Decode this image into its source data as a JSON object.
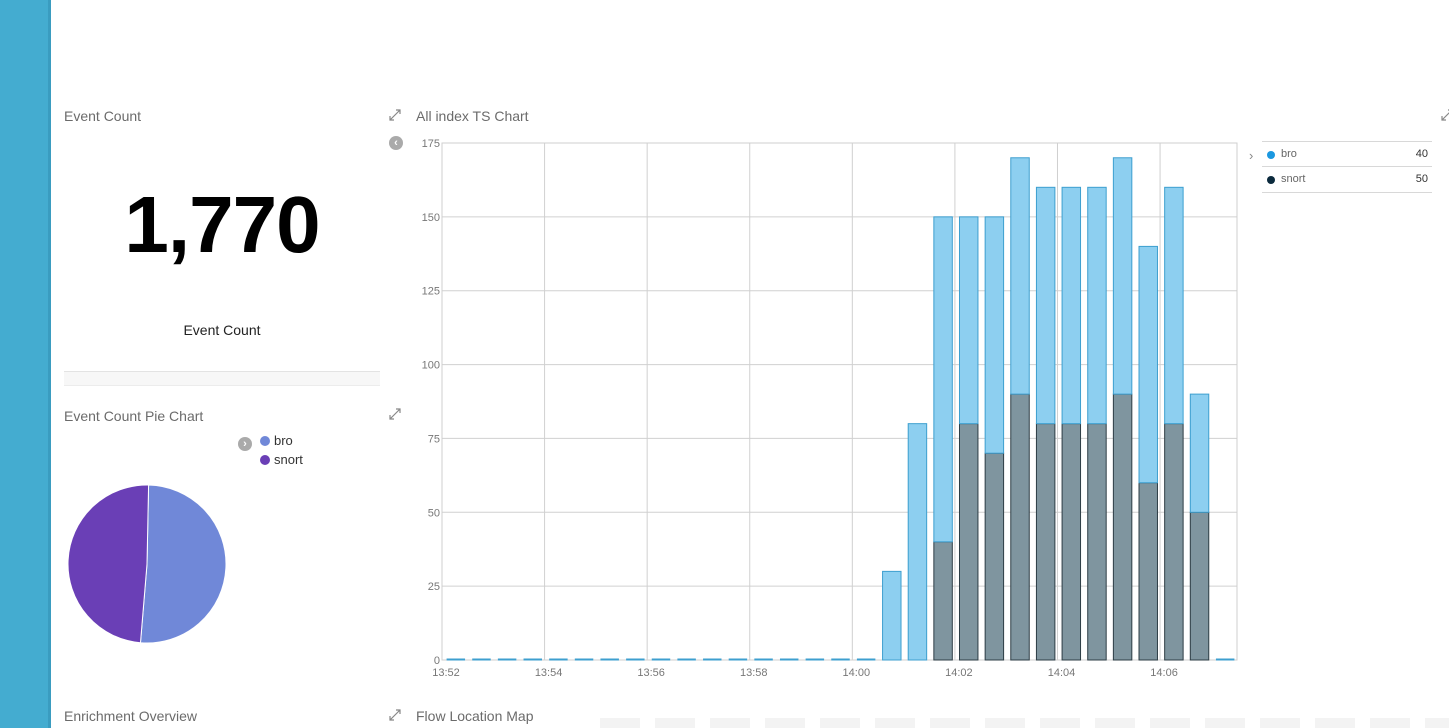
{
  "colors": {
    "sidebar": "#44acd0",
    "bro": "#7088d8",
    "snort": "#6a3fb6",
    "ts_bro": "#8dcff0",
    "ts_bro_stroke": "#3d9fcf",
    "ts_snort": "#7f959f",
    "ts_snort_stroke": "#2d3d45",
    "ts_legend_bro": "#1b98e0",
    "ts_legend_snort": "#0b2a3d"
  },
  "panels": {
    "event_count": {
      "title": "Event Count",
      "value": "1,770",
      "label": "Event Count"
    },
    "pie": {
      "title": "Event Count Pie Chart",
      "legend": [
        "bro",
        "snort"
      ]
    },
    "ts": {
      "title": "All index TS Chart",
      "legend": [
        {
          "name": "bro",
          "value": "40"
        },
        {
          "name": "snort",
          "value": "50"
        }
      ]
    },
    "enrichment": {
      "title": "Enrichment Overview"
    },
    "flow_map": {
      "title": "Flow Location Map"
    }
  },
  "icons": {
    "expand": "expand-arrows-icon",
    "toggle_left": "chevron-left-circle-icon",
    "toggle_right": "chevron-right-circle-icon",
    "legend_chevron": "chevron-right-icon"
  },
  "chart_data": [
    {
      "type": "pie",
      "categories": [
        "bro",
        "snort"
      ],
      "values": [
        51,
        49
      ]
    },
    {
      "type": "bar",
      "stacked": true,
      "x_tick_labels": [
        "13:52",
        "13:54",
        "13:56",
        "13:58",
        "14:00",
        "14:02",
        "14:04",
        "14:06"
      ],
      "ylim": [
        0,
        175
      ],
      "y_ticks": [
        0,
        25,
        50,
        75,
        100,
        125,
        150,
        175
      ],
      "grid": true,
      "legend_placement": "right",
      "x": [
        "13:52",
        "13:52:30",
        "13:53",
        "13:53:30",
        "13:54",
        "13:54:30",
        "13:55",
        "13:55:30",
        "13:56",
        "13:56:30",
        "13:57",
        "13:57:30",
        "13:58",
        "13:58:30",
        "13:59",
        "13:59:30",
        "14:00",
        "14:00:30",
        "14:01",
        "14:01:30",
        "14:02",
        "14:02:30",
        "14:03",
        "14:03:30",
        "14:04",
        "14:04:30",
        "14:05",
        "14:05:30",
        "14:06",
        "14:06:30",
        "14:07"
      ],
      "series": [
        {
          "name": "snort",
          "values": [
            0,
            0,
            0,
            0,
            0,
            0,
            0,
            0,
            0,
            0,
            0,
            0,
            0,
            0,
            0,
            0,
            0,
            0,
            0,
            40,
            80,
            70,
            90,
            80,
            80,
            80,
            90,
            60,
            80,
            50,
            0
          ]
        },
        {
          "name": "bro",
          "values": [
            0,
            0,
            0,
            0,
            0,
            0,
            0,
            0,
            0,
            0,
            0,
            0,
            0,
            0,
            0,
            0,
            0,
            30,
            80,
            110,
            70,
            80,
            80,
            80,
            80,
            80,
            80,
            80,
            80,
            40,
            0
          ]
        }
      ]
    }
  ]
}
